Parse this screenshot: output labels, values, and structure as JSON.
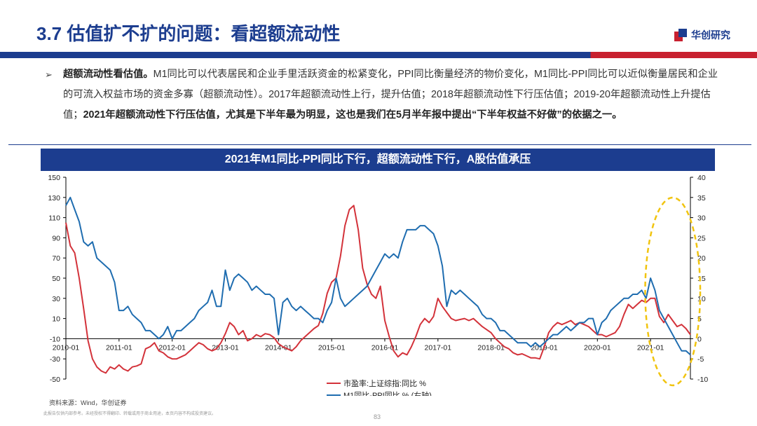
{
  "header": {
    "title": "3.7 估值扩不扩的问题：看超额流动性",
    "logo_text": "华创研究"
  },
  "body": {
    "bullet": "➢",
    "lead": "超额流动性看估值。",
    "text1": "M1同比可以代表居民和企业手里活跃资金的松紧变化，PPI同比衡量经济的物价变化，M1同比-PPI同比可以近似衡量居民和企业的可流入权益市场的资金多寡（超额流动性）。2017年超额流动性上行，提升估值；2018年超额流动性下行压估值；2019-20年超额流动性上升提估值；",
    "highlight": "2021年超额流动性下行压估值，尤其是下半年最为明显，这也是我们在5月半年报中提出“下半年权益不好做”的依据之一。"
  },
  "chart_data": {
    "type": "line",
    "title": "2021年M1同比-PPI同比下行，超额流动性下行，A股估值承压",
    "x_ticks": [
      "2010-01",
      "2011-01",
      "2012-01",
      "2013-01",
      "2014-01",
      "2015-01",
      "2016-01",
      "2017-01",
      "2018-01",
      "2019-01",
      "2020-01",
      "2021-01"
    ],
    "x_range": [
      "2010-01",
      "2021-10"
    ],
    "y_left": {
      "range": [
        -50,
        150
      ],
      "ticks": [
        150,
        130,
        110,
        90,
        70,
        50,
        30,
        10,
        -10,
        -30,
        -50
      ]
    },
    "y_right": {
      "range": [
        -10,
        40
      ],
      "ticks": [
        40,
        35,
        30,
        25,
        20,
        15,
        10,
        5,
        0,
        -5,
        -10
      ]
    },
    "legend_position": "bottom-center",
    "grid": false,
    "series": [
      {
        "name": "市盈率:上证综指:同比 %",
        "axis": "left",
        "color": "#d3323a",
        "points": [
          [
            "2010-01",
            105
          ],
          [
            "2010-02",
            82
          ],
          [
            "2010-03",
            75
          ],
          [
            "2010-04",
            50
          ],
          [
            "2010-05",
            20
          ],
          [
            "2010-06",
            -12
          ],
          [
            "2010-07",
            -30
          ],
          [
            "2010-08",
            -38
          ],
          [
            "2010-09",
            -42
          ],
          [
            "2010-10",
            -44
          ],
          [
            "2010-11",
            -38
          ],
          [
            "2010-12",
            -40
          ],
          [
            "2011-01",
            -36
          ],
          [
            "2011-02",
            -40
          ],
          [
            "2011-03",
            -42
          ],
          [
            "2011-04",
            -38
          ],
          [
            "2011-05",
            -37
          ],
          [
            "2011-06",
            -35
          ],
          [
            "2011-07",
            -20
          ],
          [
            "2011-08",
            -18
          ],
          [
            "2011-09",
            -14
          ],
          [
            "2011-10",
            -22
          ],
          [
            "2011-11",
            -24
          ],
          [
            "2011-12",
            -28
          ],
          [
            "2012-01",
            -30
          ],
          [
            "2012-02",
            -30
          ],
          [
            "2012-03",
            -28
          ],
          [
            "2012-04",
            -26
          ],
          [
            "2012-05",
            -22
          ],
          [
            "2012-06",
            -18
          ],
          [
            "2012-07",
            -14
          ],
          [
            "2012-08",
            -16
          ],
          [
            "2012-09",
            -20
          ],
          [
            "2012-10",
            -22
          ],
          [
            "2012-11",
            -20
          ],
          [
            "2012-12",
            -14
          ],
          [
            "2013-01",
            -5
          ],
          [
            "2013-02",
            6
          ],
          [
            "2013-03",
            2
          ],
          [
            "2013-04",
            -6
          ],
          [
            "2013-05",
            -2
          ],
          [
            "2013-06",
            -12
          ],
          [
            "2013-07",
            -10
          ],
          [
            "2013-08",
            -6
          ],
          [
            "2013-09",
            -8
          ],
          [
            "2013-10",
            -5
          ],
          [
            "2013-11",
            -6
          ],
          [
            "2013-12",
            -9
          ],
          [
            "2014-01",
            -15
          ],
          [
            "2014-02",
            -18
          ],
          [
            "2014-03",
            -20
          ],
          [
            "2014-04",
            -22
          ],
          [
            "2014-05",
            -18
          ],
          [
            "2014-06",
            -12
          ],
          [
            "2014-07",
            -8
          ],
          [
            "2014-08",
            -4
          ],
          [
            "2014-09",
            0
          ],
          [
            "2014-10",
            3
          ],
          [
            "2014-11",
            15
          ],
          [
            "2014-12",
            35
          ],
          [
            "2015-01",
            46
          ],
          [
            "2015-02",
            50
          ],
          [
            "2015-03",
            72
          ],
          [
            "2015-04",
            102
          ],
          [
            "2015-05",
            118
          ],
          [
            "2015-06",
            122
          ],
          [
            "2015-07",
            98
          ],
          [
            "2015-08",
            60
          ],
          [
            "2015-09",
            44
          ],
          [
            "2015-10",
            34
          ],
          [
            "2015-11",
            30
          ],
          [
            "2015-12",
            42
          ],
          [
            "2016-01",
            8
          ],
          [
            "2016-02",
            -8
          ],
          [
            "2016-03",
            -22
          ],
          [
            "2016-04",
            -28
          ],
          [
            "2016-05",
            -24
          ],
          [
            "2016-06",
            -26
          ],
          [
            "2016-07",
            -18
          ],
          [
            "2016-08",
            -8
          ],
          [
            "2016-09",
            4
          ],
          [
            "2016-10",
            10
          ],
          [
            "2016-11",
            6
          ],
          [
            "2016-12",
            12
          ],
          [
            "2017-01",
            30
          ],
          [
            "2017-02",
            22
          ],
          [
            "2017-03",
            16
          ],
          [
            "2017-04",
            10
          ],
          [
            "2017-05",
            8
          ],
          [
            "2017-06",
            9
          ],
          [
            "2017-07",
            10
          ],
          [
            "2017-08",
            8
          ],
          [
            "2017-09",
            10
          ],
          [
            "2017-10",
            6
          ],
          [
            "2017-11",
            2
          ],
          [
            "2017-12",
            -1
          ],
          [
            "2018-01",
            -4
          ],
          [
            "2018-02",
            -10
          ],
          [
            "2018-03",
            -14
          ],
          [
            "2018-04",
            -18
          ],
          [
            "2018-05",
            -20
          ],
          [
            "2018-06",
            -24
          ],
          [
            "2018-07",
            -26
          ],
          [
            "2018-08",
            -25
          ],
          [
            "2018-09",
            -27
          ],
          [
            "2018-10",
            -29
          ],
          [
            "2018-11",
            -29
          ],
          [
            "2018-12",
            -30
          ],
          [
            "2019-01",
            -18
          ],
          [
            "2019-02",
            -4
          ],
          [
            "2019-03",
            2
          ],
          [
            "2019-04",
            6
          ],
          [
            "2019-05",
            4
          ],
          [
            "2019-06",
            6
          ],
          [
            "2019-07",
            8
          ],
          [
            "2019-08",
            4
          ],
          [
            "2019-09",
            6
          ],
          [
            "2019-10",
            4
          ],
          [
            "2019-11",
            2
          ],
          [
            "2019-12",
            -2
          ],
          [
            "2020-01",
            -6
          ],
          [
            "2020-02",
            -6
          ],
          [
            "2020-03",
            -8
          ],
          [
            "2020-04",
            -6
          ],
          [
            "2020-05",
            -4
          ],
          [
            "2020-06",
            2
          ],
          [
            "2020-07",
            14
          ],
          [
            "2020-08",
            24
          ],
          [
            "2020-09",
            20
          ],
          [
            "2020-10",
            24
          ],
          [
            "2020-11",
            28
          ],
          [
            "2020-12",
            26
          ],
          [
            "2021-01",
            30
          ],
          [
            "2021-02",
            30
          ],
          [
            "2021-03",
            12
          ],
          [
            "2021-04",
            6
          ],
          [
            "2021-05",
            14
          ],
          [
            "2021-06",
            8
          ],
          [
            "2021-07",
            2
          ],
          [
            "2021-08",
            4
          ],
          [
            "2021-09",
            0
          ],
          [
            "2021-10",
            -6
          ]
        ]
      },
      {
        "name": "M1同比-PPI同比 % (右轴)",
        "axis": "right",
        "color": "#1f6db0",
        "points": [
          [
            "2010-01",
            33
          ],
          [
            "2010-02",
            35
          ],
          [
            "2010-03",
            32
          ],
          [
            "2010-04",
            29
          ],
          [
            "2010-05",
            24
          ],
          [
            "2010-06",
            23
          ],
          [
            "2010-07",
            24
          ],
          [
            "2010-08",
            20
          ],
          [
            "2010-09",
            19
          ],
          [
            "2010-10",
            18
          ],
          [
            "2010-11",
            17
          ],
          [
            "2010-12",
            14
          ],
          [
            "2011-01",
            7
          ],
          [
            "2011-02",
            7
          ],
          [
            "2011-03",
            8
          ],
          [
            "2011-04",
            6
          ],
          [
            "2011-05",
            5
          ],
          [
            "2011-06",
            4
          ],
          [
            "2011-07",
            2
          ],
          [
            "2011-08",
            2
          ],
          [
            "2011-09",
            1
          ],
          [
            "2011-10",
            0
          ],
          [
            "2011-11",
            1
          ],
          [
            "2011-12",
            3
          ],
          [
            "2012-01",
            0
          ],
          [
            "2012-02",
            2
          ],
          [
            "2012-03",
            2
          ],
          [
            "2012-04",
            3
          ],
          [
            "2012-05",
            4
          ],
          [
            "2012-06",
            5
          ],
          [
            "2012-07",
            7
          ],
          [
            "2012-08",
            8
          ],
          [
            "2012-09",
            9
          ],
          [
            "2012-10",
            12
          ],
          [
            "2012-11",
            8
          ],
          [
            "2012-12",
            8
          ],
          [
            "2013-01",
            17
          ],
          [
            "2013-02",
            12
          ],
          [
            "2013-03",
            15
          ],
          [
            "2013-04",
            16
          ],
          [
            "2013-05",
            15
          ],
          [
            "2013-06",
            14
          ],
          [
            "2013-07",
            12
          ],
          [
            "2013-08",
            13
          ],
          [
            "2013-09",
            12
          ],
          [
            "2013-10",
            11
          ],
          [
            "2013-11",
            11
          ],
          [
            "2013-12",
            10
          ],
          [
            "2014-01",
            1
          ],
          [
            "2014-02",
            9
          ],
          [
            "2014-03",
            10
          ],
          [
            "2014-04",
            8
          ],
          [
            "2014-05",
            7
          ],
          [
            "2014-06",
            8
          ],
          [
            "2014-07",
            7
          ],
          [
            "2014-08",
            6
          ],
          [
            "2014-09",
            5
          ],
          [
            "2014-10",
            5
          ],
          [
            "2014-11",
            4
          ],
          [
            "2014-12",
            7
          ],
          [
            "2015-01",
            9
          ],
          [
            "2015-02",
            15
          ],
          [
            "2015-03",
            10
          ],
          [
            "2015-04",
            8
          ],
          [
            "2015-05",
            9
          ],
          [
            "2015-06",
            10
          ],
          [
            "2015-07",
            11
          ],
          [
            "2015-08",
            12
          ],
          [
            "2015-09",
            13
          ],
          [
            "2015-10",
            15
          ],
          [
            "2015-11",
            17
          ],
          [
            "2015-12",
            19
          ],
          [
            "2016-01",
            21
          ],
          [
            "2016-02",
            20
          ],
          [
            "2016-03",
            21
          ],
          [
            "2016-04",
            20
          ],
          [
            "2016-05",
            24
          ],
          [
            "2016-06",
            27
          ],
          [
            "2016-07",
            27
          ],
          [
            "2016-08",
            27
          ],
          [
            "2016-09",
            28
          ],
          [
            "2016-10",
            28
          ],
          [
            "2016-11",
            27
          ],
          [
            "2016-12",
            26
          ],
          [
            "2017-01",
            23
          ],
          [
            "2017-02",
            18
          ],
          [
            "2017-03",
            8
          ],
          [
            "2017-04",
            12
          ],
          [
            "2017-05",
            11
          ],
          [
            "2017-06",
            12
          ],
          [
            "2017-07",
            11
          ],
          [
            "2017-08",
            10
          ],
          [
            "2017-09",
            9
          ],
          [
            "2017-10",
            8
          ],
          [
            "2017-11",
            6
          ],
          [
            "2017-12",
            5
          ],
          [
            "2018-01",
            5
          ],
          [
            "2018-02",
            4
          ],
          [
            "2018-03",
            2
          ],
          [
            "2018-04",
            2
          ],
          [
            "2018-05",
            1
          ],
          [
            "2018-06",
            0
          ],
          [
            "2018-07",
            -1
          ],
          [
            "2018-08",
            -1
          ],
          [
            "2018-09",
            -1
          ],
          [
            "2018-10",
            -2
          ],
          [
            "2018-11",
            -1
          ],
          [
            "2018-12",
            -2
          ],
          [
            "2019-01",
            -1
          ],
          [
            "2019-02",
            0
          ],
          [
            "2019-03",
            1
          ],
          [
            "2019-04",
            1
          ],
          [
            "2019-05",
            2
          ],
          [
            "2019-06",
            3
          ],
          [
            "2019-07",
            2
          ],
          [
            "2019-08",
            3
          ],
          [
            "2019-09",
            4
          ],
          [
            "2019-10",
            4
          ],
          [
            "2019-11",
            5
          ],
          [
            "2019-12",
            5
          ],
          [
            "2020-01",
            1
          ],
          [
            "2020-02",
            4
          ],
          [
            "2020-03",
            5
          ],
          [
            "2020-04",
            7
          ],
          [
            "2020-05",
            8
          ],
          [
            "2020-06",
            9
          ],
          [
            "2020-07",
            10
          ],
          [
            "2020-08",
            10
          ],
          [
            "2020-09",
            11
          ],
          [
            "2020-10",
            11
          ],
          [
            "2020-11",
            12
          ],
          [
            "2020-12",
            10
          ],
          [
            "2021-01",
            15
          ],
          [
            "2021-02",
            12
          ],
          [
            "2021-03",
            7
          ],
          [
            "2021-04",
            5
          ],
          [
            "2021-05",
            3
          ],
          [
            "2021-06",
            1
          ],
          [
            "2021-07",
            -1
          ],
          [
            "2021-08",
            -3
          ],
          [
            "2021-09",
            -3
          ],
          [
            "2021-10",
            -4
          ]
        ]
      }
    ],
    "highlight_ellipse": {
      "color": "#f1c40f",
      "around": [
        "2021-02",
        "2021-10"
      ]
    }
  },
  "footer": {
    "source": "资料来源：Wind，华创证券",
    "disclaimer": "此报告仅供内部参考。未经授权不得翻印、转载或用于商业用途，本页内容不构成投资建议。",
    "page_number": "83"
  }
}
